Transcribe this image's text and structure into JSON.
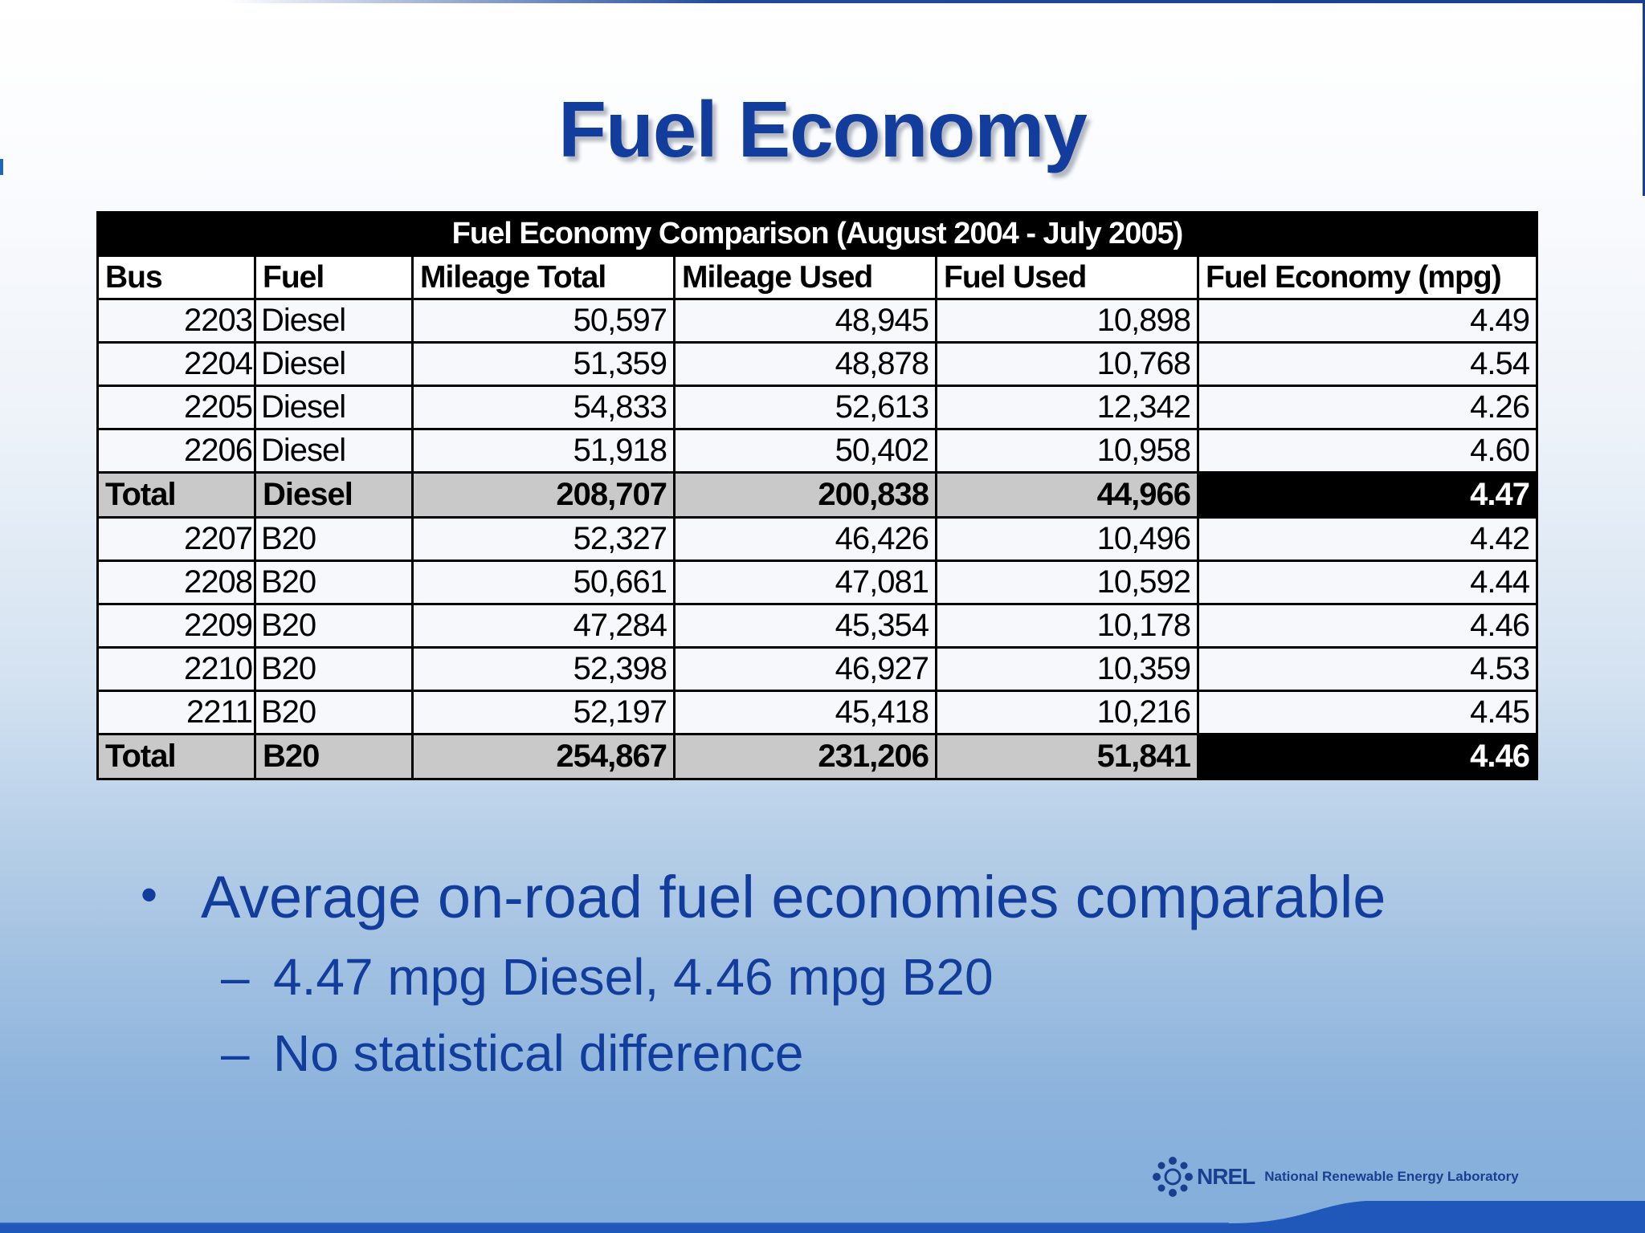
{
  "slide": {
    "title": "Fuel Economy"
  },
  "table": {
    "caption": "Fuel Economy Comparison (August 2004 - July 2005)",
    "columns": [
      "Bus",
      "Fuel",
      "Mileage Total",
      "Mileage Used",
      "Fuel Used",
      "Fuel Economy (mpg)"
    ],
    "rows": [
      {
        "bus": "2203",
        "fuel": "Diesel",
        "mileage_total": "50,597",
        "mileage_used": "48,945",
        "fuel_used": "10,898",
        "economy": "4.49"
      },
      {
        "bus": "2204",
        "fuel": "Diesel",
        "mileage_total": "51,359",
        "mileage_used": "48,878",
        "fuel_used": "10,768",
        "economy": "4.54"
      },
      {
        "bus": "2205",
        "fuel": "Diesel",
        "mileage_total": "54,833",
        "mileage_used": "52,613",
        "fuel_used": "12,342",
        "economy": "4.26"
      },
      {
        "bus": "2206",
        "fuel": "Diesel",
        "mileage_total": "51,918",
        "mileage_used": "50,402",
        "fuel_used": "10,958",
        "economy": "4.60"
      },
      {
        "bus": "Total",
        "fuel": "Diesel",
        "mileage_total": "208,707",
        "mileage_used": "200,838",
        "fuel_used": "44,966",
        "economy": "4.47"
      },
      {
        "bus": "2207",
        "fuel": "B20",
        "mileage_total": "52,327",
        "mileage_used": "46,426",
        "fuel_used": "10,496",
        "economy": "4.42"
      },
      {
        "bus": "2208",
        "fuel": "B20",
        "mileage_total": "50,661",
        "mileage_used": "47,081",
        "fuel_used": "10,592",
        "economy": "4.44"
      },
      {
        "bus": "2209",
        "fuel": "B20",
        "mileage_total": "47,284",
        "mileage_used": "45,354",
        "fuel_used": "10,178",
        "economy": "4.46"
      },
      {
        "bus": "2210",
        "fuel": "B20",
        "mileage_total": "52,398",
        "mileage_used": "46,927",
        "fuel_used": "10,359",
        "economy": "4.53"
      },
      {
        "bus": "2211",
        "fuel": "B20",
        "mileage_total": "52,197",
        "mileage_used": "45,418",
        "fuel_used": "10,216",
        "economy": "4.45"
      },
      {
        "bus": "Total",
        "fuel": "B20",
        "mileage_total": "254,867",
        "mileage_used": "231,206",
        "fuel_used": "51,841",
        "economy": "4.46"
      }
    ]
  },
  "bullets": {
    "main": "Average on-road fuel economies comparable",
    "sub": [
      "4.47 mpg Diesel, 4.46 mpg B20",
      "No statistical difference"
    ],
    "bullet_glyph": "•",
    "dash_glyph": "–"
  },
  "footer": {
    "logo_text": "NREL",
    "lab_name": "National Renewable Energy Laboratory",
    "logo_icon": "sunburst-icon"
  },
  "colors": {
    "title": "#133d9c",
    "text_blue": "#133d9c",
    "band": "#1f58b8"
  }
}
